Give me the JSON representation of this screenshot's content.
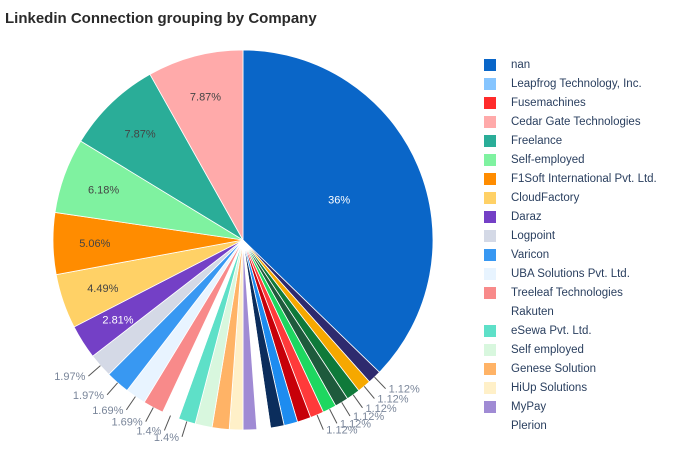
{
  "chart_data": {
    "type": "pie",
    "title": "Linkedin Connection grouping by Company",
    "start_angle_deg": 90,
    "direction": "clockwise",
    "legend_position": "right",
    "slices": [
      {
        "label": "nan",
        "value": 36,
        "color": "#0a66c8",
        "text": "36%"
      },
      {
        "label": "Plerion",
        "value": 1.12,
        "color": "#2e2a6e",
        "text": "1.12%"
      },
      {
        "label": "MyPay",
        "value": 1.12,
        "color": "#f6a800",
        "text": "1.12%"
      },
      {
        "label": "HiUp Solutions",
        "value": 1.12,
        "color": "#0f7a3a",
        "text": "1.12%"
      },
      {
        "label": "Genese Solution",
        "value": 1.12,
        "color": "#1e5a3c",
        "text": "1.12%"
      },
      {
        "label": "Self employed",
        "value": 1.12,
        "color": "#1ed760",
        "text": "1.12%"
      },
      {
        "label": "eSewa Pvt. Ltd.",
        "value": 1.12,
        "color": "#ff3a3a",
        "text": "1.12%"
      },
      {
        "label": "Rakuten",
        "value": 1.12,
        "color": "#c70009",
        "text": ""
      },
      {
        "label": "Treeleaf Technologies",
        "value": 1.12,
        "color": "#1d8cf0",
        "text": ""
      },
      {
        "label": "UBA Solutions Pvt. Ltd.",
        "value": 1.12,
        "color": "#0b2d5c",
        "text": ""
      },
      {
        "label": "Varicon",
        "value": 1.12,
        "color": "#ffffff",
        "text": ""
      },
      {
        "label": "Logpoint",
        "value": 1.12,
        "color": "#a08bd4",
        "text": ""
      },
      {
        "label": "Daraz",
        "value": 1.12,
        "color": "#fff0c8",
        "text": ""
      },
      {
        "label": "CloudFactory",
        "value": 1.4,
        "color": "#ffb366",
        "text": ""
      },
      {
        "label": "F1Soft International Pvt. Ltd.",
        "value": 1.4,
        "color": "#d8f7de",
        "text": ""
      },
      {
        "label": "Self-employed",
        "value": 1.4,
        "color": "#5ee0c8",
        "text": "1.4%"
      },
      {
        "label": "Freelance",
        "value": 1.4,
        "color": "#ffffff",
        "text": "1.4%"
      },
      {
        "label": "Cedar Gate Technologies",
        "value": 1.69,
        "color": "#f88a8a",
        "text": "1.69%"
      },
      {
        "label": "Fusemachines",
        "value": 1.69,
        "color": "#e8f4ff",
        "text": "1.69%"
      },
      {
        "label": "Leapfrog Technology, Inc.",
        "value": 1.97,
        "color": "#3898f2",
        "text": "1.97%"
      },
      {
        "label": "nan",
        "value": 1.97,
        "color": "#d4d9e6",
        "text": "1.97%"
      },
      {
        "label": "Plerion",
        "value": 2.81,
        "color": "#7440c6",
        "text": "2.81%"
      },
      {
        "label": "MyPay",
        "value": 4.49,
        "color": "#ffd166",
        "text": "4.49%"
      },
      {
        "label": "HiUp Solutions",
        "value": 5.06,
        "color": "#ff8c00",
        "text": "5.06%"
      },
      {
        "label": "Genese Solution",
        "value": 6.18,
        "color": "#7ff2a0",
        "text": "6.18%"
      },
      {
        "label": "Self employed",
        "value": 7.87,
        "color": "#2aad98",
        "text": "7.87%"
      },
      {
        "label": "eSewa Pvt. Ltd.",
        "value": 7.87,
        "color": "#ffaaaa",
        "text": "7.87%"
      }
    ],
    "legend": [
      {
        "label": "nan",
        "color": "#0a66c8"
      },
      {
        "label": "Leapfrog Technology, Inc.",
        "color": "#86c5ff"
      },
      {
        "label": "Fusemachines",
        "color": "#ff2b2b"
      },
      {
        "label": "Cedar Gate Technologies",
        "color": "#ffaaaa"
      },
      {
        "label": "Freelance",
        "color": "#2aad98"
      },
      {
        "label": "Self-employed",
        "color": "#7ff2a0"
      },
      {
        "label": "F1Soft International Pvt. Ltd.",
        "color": "#ff8c00"
      },
      {
        "label": "CloudFactory",
        "color": "#ffd166"
      },
      {
        "label": "Daraz",
        "color": "#7440c6"
      },
      {
        "label": "Logpoint",
        "color": "#d4d9e6"
      },
      {
        "label": "Varicon",
        "color": "#3898f2"
      },
      {
        "label": "UBA Solutions Pvt. Ltd.",
        "color": "#e8f4ff"
      },
      {
        "label": "Treeleaf Technologies",
        "color": "#f88a8a"
      },
      {
        "label": "Rakuten",
        "color": "#ffffff"
      },
      {
        "label": "eSewa Pvt. Ltd.",
        "color": "#5ee0c8"
      },
      {
        "label": "Self employed",
        "color": "#d8f7de"
      },
      {
        "label": "Genese Solution",
        "color": "#ffb366"
      },
      {
        "label": "HiUp Solutions",
        "color": "#fff0c8"
      },
      {
        "label": "MyPay",
        "color": "#a08bd4"
      },
      {
        "label": "Plerion",
        "color": "#ffffff"
      }
    ]
  }
}
